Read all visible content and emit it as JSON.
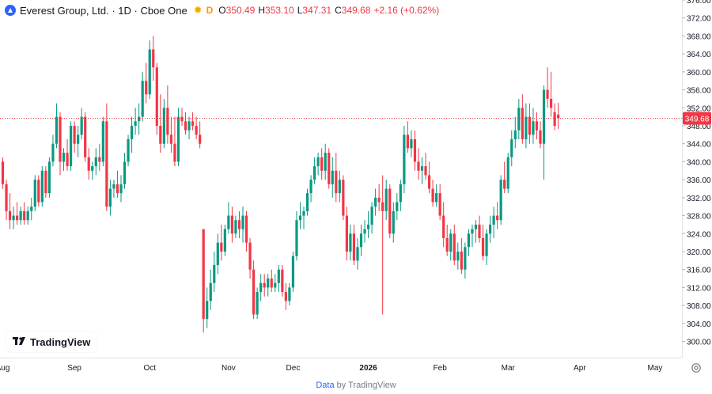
{
  "legend": {
    "symbol": "Everest Group, Ltd. · 1D · Cboe One",
    "o_key": "O",
    "o_val": "350.49",
    "h_key": "H",
    "h_val": "353.10",
    "l_key": "L",
    "l_val": "347.31",
    "c_key": "C",
    "c_val": "349.68",
    "change": "+2.16 (+0.62%)",
    "d_badge": "D"
  },
  "watermark": "TradingView",
  "footer": {
    "data": "Data",
    "by": "by TradingView"
  },
  "colors": {
    "up": "#089981",
    "down": "#f23645",
    "grid": "#f0f3fa",
    "axis_text": "#131722",
    "last_price": "#f23645"
  },
  "chart_data": {
    "type": "candlestick",
    "last_price": 349.68,
    "y_range": [
      296.4,
      376.0
    ],
    "y_ticks": [
      300,
      304,
      308,
      312,
      316,
      320,
      324,
      328,
      332,
      336,
      340,
      344,
      348,
      352,
      356,
      360,
      364,
      368,
      372,
      376
    ],
    "x_labels": [
      {
        "label": "Aug",
        "index": 0
      },
      {
        "label": "Sep",
        "index": 20
      },
      {
        "label": "Oct",
        "index": 41
      },
      {
        "label": "Nov",
        "index": 63
      },
      {
        "label": "Dec",
        "index": 81
      },
      {
        "label": "2026",
        "index": 102
      },
      {
        "label": "Feb",
        "index": 122
      },
      {
        "label": "Mar",
        "index": 141
      },
      {
        "label": "Apr",
        "index": 161
      },
      {
        "label": "May",
        "index": 182
      }
    ],
    "candles": [
      [
        340,
        341,
        334,
        335
      ],
      [
        335,
        336,
        327,
        329
      ],
      [
        329,
        333,
        325,
        327
      ],
      [
        327,
        330,
        325,
        328
      ],
      [
        328,
        331,
        326,
        327
      ],
      [
        327,
        330,
        326,
        329
      ],
      [
        329,
        331,
        326,
        327
      ],
      [
        327,
        330,
        326,
        329
      ],
      [
        329,
        332,
        327,
        330
      ],
      [
        330,
        337,
        329,
        336
      ],
      [
        336,
        337,
        330,
        331
      ],
      [
        331,
        339,
        330,
        338
      ],
      [
        338,
        339,
        332,
        333
      ],
      [
        333,
        341,
        332,
        340
      ],
      [
        340,
        346,
        339,
        344
      ],
      [
        344,
        353,
        343,
        350
      ],
      [
        350,
        351,
        337,
        340
      ],
      [
        340,
        343,
        338,
        342
      ],
      [
        342,
        345,
        338,
        339
      ],
      [
        339,
        349,
        338,
        348
      ],
      [
        348,
        349,
        342,
        344
      ],
      [
        344,
        348,
        341,
        346
      ],
      [
        346,
        352,
        345,
        350
      ],
      [
        350,
        351,
        340,
        341
      ],
      [
        341,
        343,
        336,
        338
      ],
      [
        338,
        340,
        336,
        339
      ],
      [
        339,
        343,
        337,
        341
      ],
      [
        341,
        344,
        338,
        340
      ],
      [
        340,
        350,
        339,
        349
      ],
      [
        349,
        353,
        329,
        330
      ],
      [
        330,
        336,
        328,
        334
      ],
      [
        334,
        336,
        332,
        335
      ],
      [
        335,
        338,
        332,
        333
      ],
      [
        333,
        337,
        331,
        335
      ],
      [
        335,
        342,
        334,
        340
      ],
      [
        340,
        346,
        339,
        345
      ],
      [
        345,
        350,
        342,
        348
      ],
      [
        348,
        352,
        346,
        349
      ],
      [
        349,
        353,
        346,
        350
      ],
      [
        350,
        360,
        349,
        358
      ],
      [
        358,
        362,
        353,
        355
      ],
      [
        355,
        367,
        354,
        365
      ],
      [
        365,
        368,
        358,
        361
      ],
      [
        361,
        362,
        346,
        348
      ],
      [
        348,
        355,
        342,
        344
      ],
      [
        344,
        354,
        343,
        352
      ],
      [
        352,
        357,
        344,
        346
      ],
      [
        346,
        350,
        342,
        344
      ],
      [
        344,
        350,
        339,
        340
      ],
      [
        340,
        352,
        339,
        350
      ],
      [
        350,
        352,
        348,
        349
      ],
      [
        349,
        351,
        346,
        347
      ],
      [
        347,
        350,
        345,
        349
      ],
      [
        349,
        351,
        347,
        348
      ],
      [
        348,
        350,
        345,
        346
      ],
      [
        346,
        349,
        343,
        344
      ],
      [
        325,
        325,
        302,
        305
      ],
      [
        305,
        312,
        303,
        309
      ],
      [
        309,
        316,
        307,
        313
      ],
      [
        313,
        320,
        311,
        317
      ],
      [
        317,
        324,
        315,
        322
      ],
      [
        322,
        326,
        318,
        320
      ],
      [
        320,
        326,
        319,
        325
      ],
      [
        325,
        331,
        324,
        328
      ],
      [
        328,
        330,
        322,
        324
      ],
      [
        324,
        328,
        323,
        327
      ],
      [
        327,
        329,
        323,
        325
      ],
      [
        325,
        330,
        322,
        328
      ],
      [
        328,
        329,
        320,
        322
      ],
      [
        322,
        323,
        314,
        316
      ],
      [
        316,
        318,
        305,
        306
      ],
      [
        306,
        312,
        305,
        311
      ],
      [
        311,
        315,
        309,
        313
      ],
      [
        313,
        315,
        310,
        312
      ],
      [
        312,
        315,
        310,
        314
      ],
      [
        314,
        316,
        311,
        312
      ],
      [
        312,
        315,
        311,
        313
      ],
      [
        313,
        317,
        311,
        316
      ],
      [
        316,
        317,
        310,
        311
      ],
      [
        311,
        313,
        307,
        309
      ],
      [
        309,
        313,
        308,
        312
      ],
      [
        312,
        320,
        311,
        319
      ],
      [
        319,
        329,
        318,
        327
      ],
      [
        327,
        331,
        325,
        328
      ],
      [
        328,
        330,
        325,
        329
      ],
      [
        329,
        334,
        328,
        333
      ],
      [
        333,
        337,
        331,
        336
      ],
      [
        336,
        341,
        335,
        339
      ],
      [
        339,
        342,
        337,
        341
      ],
      [
        341,
        343,
        336,
        338
      ],
      [
        338,
        344,
        336,
        342
      ],
      [
        342,
        343,
        334,
        335
      ],
      [
        335,
        341,
        332,
        338
      ],
      [
        338,
        342,
        331,
        333
      ],
      [
        333,
        338,
        331,
        336
      ],
      [
        336,
        337,
        327,
        328
      ],
      [
        328,
        330,
        318,
        320
      ],
      [
        320,
        326,
        318,
        324
      ],
      [
        324,
        326,
        317,
        318
      ],
      [
        318,
        323,
        316,
        321
      ],
      [
        321,
        326,
        319,
        324
      ],
      [
        324,
        327,
        322,
        325
      ],
      [
        325,
        329,
        323,
        326
      ],
      [
        326,
        331,
        324,
        330
      ],
      [
        330,
        334,
        328,
        332
      ],
      [
        332,
        335,
        329,
        331
      ],
      [
        331,
        337,
        306,
        329
      ],
      [
        329,
        336,
        327,
        334
      ],
      [
        334,
        335,
        323,
        324
      ],
      [
        324,
        331,
        322,
        329
      ],
      [
        329,
        333,
        327,
        331
      ],
      [
        331,
        336,
        329,
        335
      ],
      [
        335,
        348,
        333,
        346
      ],
      [
        346,
        349,
        342,
        343
      ],
      [
        343,
        347,
        341,
        345
      ],
      [
        345,
        347,
        338,
        340
      ],
      [
        340,
        343,
        336,
        338
      ],
      [
        338,
        341,
        335,
        339
      ],
      [
        339,
        342,
        336,
        337
      ],
      [
        337,
        340,
        333,
        334
      ],
      [
        334,
        336,
        330,
        331
      ],
      [
        331,
        335,
        330,
        333
      ],
      [
        333,
        335,
        327,
        328
      ],
      [
        328,
        331,
        321,
        323
      ],
      [
        323,
        326,
        319,
        320
      ],
      [
        320,
        325,
        318,
        324
      ],
      [
        324,
        326,
        317,
        318
      ],
      [
        318,
        322,
        316,
        320
      ],
      [
        320,
        323,
        315,
        316
      ],
      [
        316,
        322,
        314,
        321
      ],
      [
        321,
        325,
        319,
        324
      ],
      [
        324,
        326,
        321,
        325
      ],
      [
        325,
        327,
        322,
        326
      ],
      [
        326,
        328,
        322,
        323
      ],
      [
        323,
        326,
        318,
        319
      ],
      [
        319,
        325,
        317,
        324
      ],
      [
        324,
        328,
        322,
        326
      ],
      [
        326,
        330,
        323,
        328
      ],
      [
        328,
        331,
        325,
        327
      ],
      [
        327,
        337,
        326,
        336
      ],
      [
        336,
        340,
        333,
        334
      ],
      [
        334,
        342,
        333,
        341
      ],
      [
        341,
        347,
        339,
        345
      ],
      [
        345,
        350,
        343,
        347
      ],
      [
        347,
        354,
        345,
        352
      ],
      [
        352,
        355,
        344,
        345
      ],
      [
        345,
        353,
        343,
        350
      ],
      [
        350,
        353,
        344,
        346
      ],
      [
        346,
        352,
        344,
        349
      ],
      [
        349,
        351,
        345,
        347
      ],
      [
        347,
        349,
        343,
        344
      ],
      [
        344,
        357,
        336,
        356
      ],
      [
        356,
        361,
        352,
        354
      ],
      [
        354,
        360,
        350,
        352
      ],
      [
        351,
        353,
        347,
        348
      ],
      [
        350.49,
        353.1,
        347.31,
        349.68
      ]
    ]
  }
}
